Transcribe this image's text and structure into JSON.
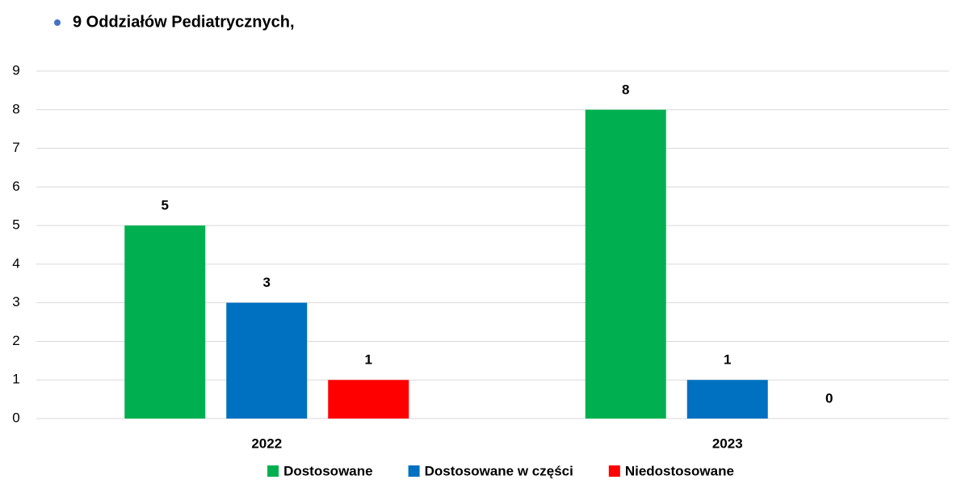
{
  "chart_data": {
    "type": "bar",
    "title": "9 Oddziałów Pediatrycznych,",
    "categories": [
      "2022",
      "2023"
    ],
    "series": [
      {
        "name": "Dostosowane",
        "color": "#00b050",
        "values": [
          5,
          8
        ]
      },
      {
        "name": "Dostosowane w części",
        "color": "#0070c0",
        "values": [
          3,
          1
        ]
      },
      {
        "name": "Niedostosowane",
        "color": "#ff0000",
        "values": [
          1,
          0
        ]
      }
    ],
    "ylim": [
      0,
      9
    ],
    "yticks": [
      0,
      1,
      2,
      3,
      4,
      5,
      6,
      7,
      8,
      9
    ],
    "grid": true,
    "legend": "bottom"
  }
}
